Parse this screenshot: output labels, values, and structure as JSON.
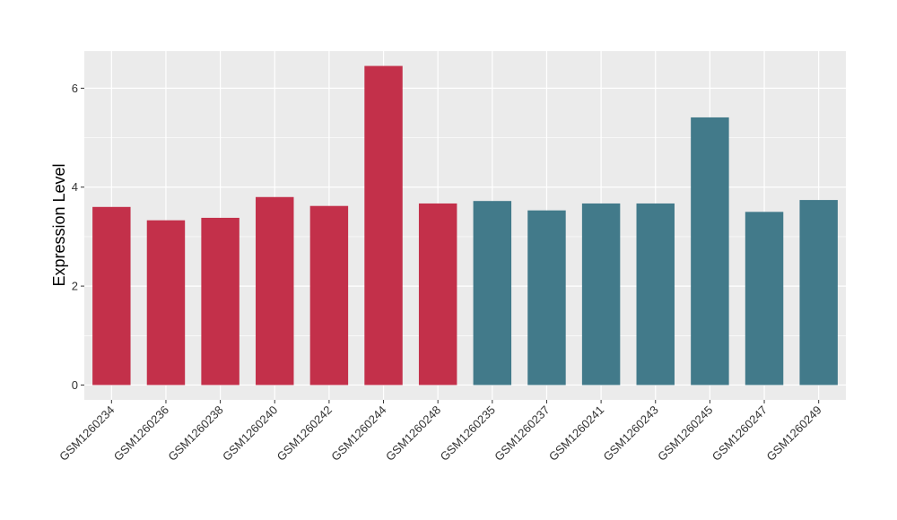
{
  "chart_data": {
    "type": "bar",
    "xlabel": "",
    "ylabel": "Expression Level",
    "ylim": [
      -0.3,
      6.75
    ],
    "yticks": [
      0,
      2,
      4,
      6
    ],
    "grid": true,
    "categories": [
      "GSM1260234",
      "GSM1260236",
      "GSM1260238",
      "GSM1260240",
      "GSM1260242",
      "GSM1260244",
      "GSM1260248",
      "GSM1260235",
      "GSM1260237",
      "GSM1260241",
      "GSM1260243",
      "GSM1260245",
      "GSM1260247",
      "GSM1260249"
    ],
    "values": [
      3.6,
      3.33,
      3.38,
      3.8,
      3.62,
      6.45,
      3.67,
      3.72,
      3.53,
      3.67,
      3.67,
      5.41,
      3.5,
      3.74
    ],
    "bar_colors": [
      "#C3304A",
      "#C3304A",
      "#C3304A",
      "#C3304A",
      "#C3304A",
      "#C3304A",
      "#C3304A",
      "#427A8A",
      "#427A8A",
      "#427A8A",
      "#427A8A",
      "#427A8A",
      "#427A8A",
      "#427A8A"
    ],
    "panel_background": "#EBEBEB",
    "gridline_color": "#FFFFFF"
  }
}
